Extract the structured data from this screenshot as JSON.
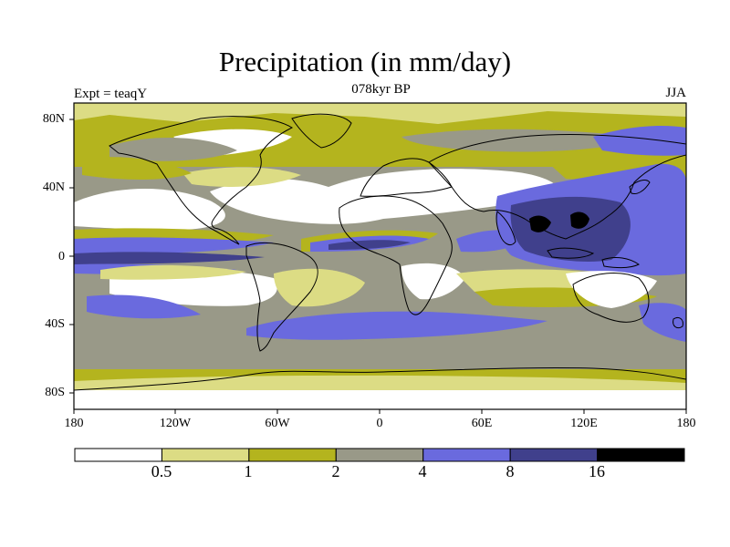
{
  "title": "Precipitation (in mm/day)",
  "experiment_label": "Expt = teaqY",
  "period_label": "078kyr BP",
  "season_label": "JJA",
  "y_ticks": [
    "80N",
    "40N",
    "0",
    "40S",
    "80S"
  ],
  "x_ticks": [
    "180",
    "120W",
    "60W",
    "0",
    "60E",
    "120E",
    "180"
  ],
  "colorbar": {
    "levels": [
      "0.5",
      "1",
      "2",
      "4",
      "8",
      "16"
    ],
    "colors": [
      "#ffffff",
      "#dcdc84",
      "#b4b41e",
      "#999988",
      "#6a6ade",
      "#40408c",
      "#000000"
    ]
  },
  "colors": {
    "land_outline": "#000000",
    "frame": "#000000"
  }
}
